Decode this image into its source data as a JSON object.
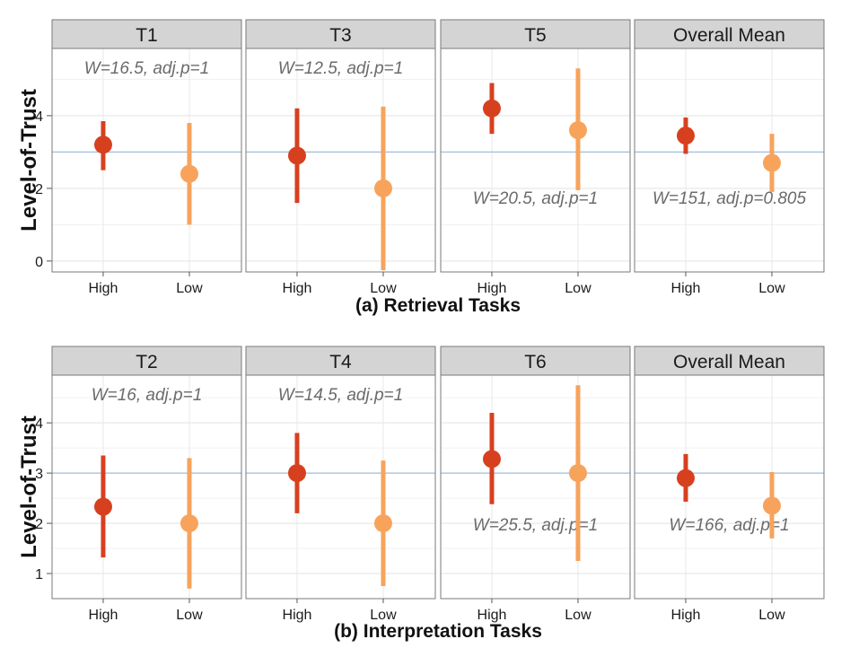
{
  "chart_data": [
    {
      "type": "scatter",
      "title": "(a) Retrieval Tasks",
      "ylabel": "Level-of-Trust",
      "categories": [
        "High",
        "Low"
      ],
      "ylim": [
        -0.3,
        5.85
      ],
      "yticks": [
        0,
        2,
        4
      ],
      "reference_line": 3,
      "grid": true,
      "colors": {
        "High": "#d7401f",
        "Low": "#f7a35c",
        "reference": "#9fbde0"
      },
      "panels": [
        {
          "label": "T1",
          "annotation": "W=16.5, adj.p=1",
          "annotation_position": "top",
          "points": [
            {
              "category": "High",
              "mean": 3.2,
              "low": 2.5,
              "high": 3.85
            },
            {
              "category": "Low",
              "mean": 2.4,
              "low": 1.0,
              "high": 3.8
            }
          ]
        },
        {
          "label": "T3",
          "annotation": "W=12.5, adj.p=1",
          "annotation_position": "top",
          "points": [
            {
              "category": "High",
              "mean": 2.9,
              "low": 1.6,
              "high": 4.2
            },
            {
              "category": "Low",
              "mean": 2.0,
              "low": -0.25,
              "high": 4.25
            }
          ]
        },
        {
          "label": "T5",
          "annotation": "W=20.5, adj.p=1",
          "annotation_position": "bottom",
          "points": [
            {
              "category": "High",
              "mean": 4.2,
              "low": 3.5,
              "high": 4.9
            },
            {
              "category": "Low",
              "mean": 3.6,
              "low": 1.95,
              "high": 5.3
            }
          ]
        },
        {
          "label": "Overall Mean",
          "annotation": "W=151, adj.p=0.805",
          "annotation_position": "bottom",
          "points": [
            {
              "category": "High",
              "mean": 3.45,
              "low": 2.95,
              "high": 3.95
            },
            {
              "category": "Low",
              "mean": 2.7,
              "low": 1.9,
              "high": 3.5
            }
          ]
        }
      ]
    },
    {
      "type": "scatter",
      "title": "(b) Interpretation Tasks",
      "ylabel": "Level-of-Trust",
      "categories": [
        "High",
        "Low"
      ],
      "ylim": [
        0.5,
        4.95
      ],
      "yticks": [
        1,
        2,
        3,
        4
      ],
      "reference_line": 3,
      "grid": true,
      "colors": {
        "High": "#d7401f",
        "Low": "#f7a35c",
        "reference": "#9fbde0"
      },
      "panels": [
        {
          "label": "T2",
          "annotation": "W=16, adj.p=1",
          "annotation_position": "top",
          "points": [
            {
              "category": "High",
              "mean": 2.33,
              "low": 1.32,
              "high": 3.35
            },
            {
              "category": "Low",
              "mean": 2.0,
              "low": 0.7,
              "high": 3.3
            }
          ]
        },
        {
          "label": "T4",
          "annotation": "W=14.5, adj.p=1",
          "annotation_position": "top",
          "points": [
            {
              "category": "High",
              "mean": 3.0,
              "low": 2.2,
              "high": 3.8
            },
            {
              "category": "Low",
              "mean": 2.0,
              "low": 0.75,
              "high": 3.25
            }
          ]
        },
        {
          "label": "T6",
          "annotation": "W=25.5, adj.p=1",
          "annotation_position": "bottom",
          "points": [
            {
              "category": "High",
              "mean": 3.28,
              "low": 2.38,
              "high": 4.2
            },
            {
              "category": "Low",
              "mean": 3.0,
              "low": 1.25,
              "high": 4.75
            }
          ]
        },
        {
          "label": "Overall Mean",
          "annotation": "W=166, adj.p=1",
          "annotation_position": "bottom",
          "points": [
            {
              "category": "High",
              "mean": 2.9,
              "low": 2.43,
              "high": 3.38
            },
            {
              "category": "Low",
              "mean": 2.35,
              "low": 1.7,
              "high": 3.02
            }
          ]
        }
      ]
    }
  ]
}
